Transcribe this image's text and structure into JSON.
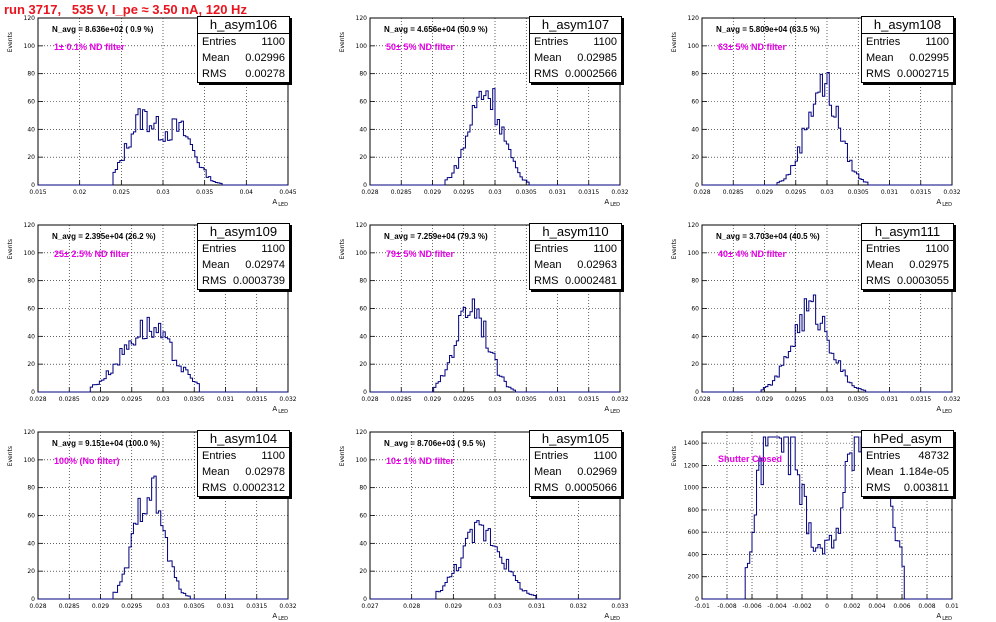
{
  "page": {
    "title": "run 3717,   535 V, I_pe ≈ 3.50 nA, 120 Hz"
  },
  "colors": {
    "title": "#e8141e",
    "annotation": "#e600e6",
    "histogram_line": "#00007f",
    "grid": "#000000"
  },
  "stat_labels": {
    "entries": "Entries",
    "mean": "Mean",
    "rms": "RMS"
  },
  "axis": {
    "ylabel": "Events",
    "xlabel_main": "A",
    "xlabel_sub": "LED"
  },
  "chart_data": [
    {
      "type": "bar",
      "name": "h_asym106",
      "navg": "N_avg = 8.636e+02 ( 0.9 %)",
      "annotation": "1± 0.1% ND filter",
      "stats": {
        "entries": "1100",
        "mean": "0.02996",
        "rms": "0.00278"
      },
      "xlim": [
        0.015,
        0.045
      ],
      "ylim": [
        0,
        120
      ],
      "x_ticks": [
        "0.015",
        "0.02",
        "0.025",
        "0.03",
        "0.035",
        "0.04",
        "0.045"
      ],
      "y_ticks": [
        "0",
        "20",
        "40",
        "60",
        "80",
        "100",
        "120"
      ],
      "peaks": [
        [
          0.0275,
          47,
          0.0018
        ],
        [
          0.032,
          38,
          0.0018
        ]
      ],
      "range": [
        0.024,
        0.037
      ]
    },
    {
      "type": "bar",
      "name": "h_asym107",
      "navg": "N_avg = 4.656e+04 (50.9 %)",
      "annotation": "50± 5% ND filter",
      "stats": {
        "entries": "1100",
        "mean": "0.02985",
        "rms": "0.0002566"
      },
      "xlim": [
        0.028,
        0.032
      ],
      "ylim": [
        0,
        120
      ],
      "x_ticks": [
        "0.028",
        "0.0285",
        "0.029",
        "0.0295",
        "0.03",
        "0.0305",
        "0.031",
        "0.0315",
        "0.032"
      ],
      "y_ticks": [
        "0",
        "20",
        "40",
        "60",
        "80",
        "100",
        "120"
      ],
      "peaks": [
        [
          0.02985,
          68,
          0.00026
        ]
      ],
      "range": [
        0.0292,
        0.03055
      ]
    },
    {
      "type": "bar",
      "name": "h_asym108",
      "navg": "N_avg = 5.809e+04 (63.5 %)",
      "annotation": "63± 5% ND filter",
      "stats": {
        "entries": "1100",
        "mean": "0.02995",
        "rms": "0.0002715"
      },
      "xlim": [
        0.028,
        0.032
      ],
      "ylim": [
        0,
        120
      ],
      "x_ticks": [
        "0.028",
        "0.0285",
        "0.029",
        "0.0295",
        "0.03",
        "0.0305",
        "0.031",
        "0.0315",
        "0.032"
      ],
      "y_ticks": [
        "0",
        "20",
        "40",
        "60",
        "80",
        "100",
        "120"
      ],
      "peaks": [
        [
          0.02993,
          72,
          0.00026
        ]
      ],
      "range": [
        0.0292,
        0.0307
      ]
    },
    {
      "type": "bar",
      "name": "h_asym109",
      "navg": "N_avg = 2.395e+04 (26.2 %)",
      "annotation": "25± 2.5% ND filter",
      "stats": {
        "entries": "1100",
        "mean": "0.02974",
        "rms": "0.0003739"
      },
      "xlim": [
        0.028,
        0.032
      ],
      "ylim": [
        0,
        120
      ],
      "x_ticks": [
        "0.028",
        "0.0285",
        "0.029",
        "0.0295",
        "0.03",
        "0.0305",
        "0.031",
        "0.0315",
        "0.032"
      ],
      "y_ticks": [
        "0",
        "20",
        "40",
        "60",
        "80",
        "100",
        "120"
      ],
      "peaks": [
        [
          0.02975,
          46,
          0.0004
        ]
      ],
      "range": [
        0.02885,
        0.0306
      ]
    },
    {
      "type": "bar",
      "name": "h_asym110",
      "navg": "N_avg = 7.259e+04 (79.3 %)",
      "annotation": "79± 5% ND filter",
      "stats": {
        "entries": "1100",
        "mean": "0.02963",
        "rms": "0.0002481"
      },
      "xlim": [
        0.028,
        0.032
      ],
      "ylim": [
        0,
        120
      ],
      "x_ticks": [
        "0.028",
        "0.0285",
        "0.029",
        "0.0295",
        "0.03",
        "0.0305",
        "0.031",
        "0.0315",
        "0.032"
      ],
      "y_ticks": [
        "0",
        "20",
        "40",
        "60",
        "80",
        "100",
        "120"
      ],
      "peaks": [
        [
          0.02963,
          64,
          0.00025
        ]
      ],
      "range": [
        0.029,
        0.03035
      ]
    },
    {
      "type": "bar",
      "name": "h_asym111",
      "navg": "N_avg = 3.703e+04 (40.5 %)",
      "annotation": "40± 4% ND filter",
      "stats": {
        "entries": "1100",
        "mean": "0.02975",
        "rms": "0.0003055"
      },
      "xlim": [
        0.028,
        0.032
      ],
      "ylim": [
        0,
        120
      ],
      "x_ticks": [
        "0.028",
        "0.0285",
        "0.029",
        "0.0295",
        "0.03",
        "0.0305",
        "0.031",
        "0.0315",
        "0.032"
      ],
      "y_ticks": [
        "0",
        "20",
        "40",
        "60",
        "80",
        "100",
        "120"
      ],
      "peaks": [
        [
          0.02975,
          60,
          0.0003
        ]
      ],
      "range": [
        0.02895,
        0.03065
      ]
    },
    {
      "type": "bar",
      "name": "h_asym104",
      "navg": "N_avg = 9.151e+04 (100.0 %)",
      "annotation": "100% (No filter)",
      "stats": {
        "entries": "1100",
        "mean": "0.02978",
        "rms": "0.0002312"
      },
      "xlim": [
        0.028,
        0.032
      ],
      "ylim": [
        0,
        120
      ],
      "x_ticks": [
        "0.028",
        "0.0285",
        "0.029",
        "0.0295",
        "0.03",
        "0.0305",
        "0.031",
        "0.0315",
        "0.032"
      ],
      "y_ticks": [
        "0",
        "20",
        "40",
        "60",
        "80",
        "100",
        "120"
      ],
      "peaks": [
        [
          0.02978,
          80,
          0.00023
        ]
      ],
      "range": [
        0.0292,
        0.03045
      ]
    },
    {
      "type": "bar",
      "name": "h_asym105",
      "navg": "N_avg = 8.706e+03 ( 9.5 %)",
      "annotation": "10± 1% ND filter",
      "stats": {
        "entries": "1100",
        "mean": "0.02969",
        "rms": "0.0005066"
      },
      "xlim": [
        0.027,
        0.033
      ],
      "ylim": [
        0,
        120
      ],
      "x_ticks": [
        "0.027",
        "0.028",
        "0.029",
        "0.03",
        "0.031",
        "0.032",
        "0.033"
      ],
      "y_ticks": [
        "0",
        "20",
        "40",
        "60",
        "80",
        "100",
        "120"
      ],
      "peaks": [
        [
          0.02969,
          50,
          0.0005
        ]
      ],
      "range": [
        0.0286,
        0.031
      ]
    },
    {
      "type": "bar",
      "name": "hPed_asym",
      "navg": "",
      "annotation": "Shutter Closed",
      "stats": {
        "entries": "48732",
        "mean": "1.184e-05",
        "rms": "0.003811"
      },
      "xlim": [
        -0.01,
        0.01
      ],
      "ylim": [
        0,
        1500
      ],
      "x_ticks": [
        "-0.01",
        "-0.008",
        "-0.006",
        "-0.004",
        "-0.002",
        "0",
        "0.002",
        "0.004",
        "0.006",
        "0.008",
        "0.01"
      ],
      "y_ticks": [
        "0",
        "200",
        "400",
        "600",
        "800",
        "1000",
        "1200",
        "1400"
      ],
      "peaks": [
        [
          -0.0048,
          1180,
          0.0009
        ],
        [
          -0.003,
          980,
          0.001
        ],
        [
          0.0025,
          1050,
          0.001
        ],
        [
          0.0045,
          920,
          0.001
        ],
        [
          0.0,
          420,
          0.003
        ]
      ],
      "range": [
        -0.0065,
        0.0062
      ]
    }
  ]
}
